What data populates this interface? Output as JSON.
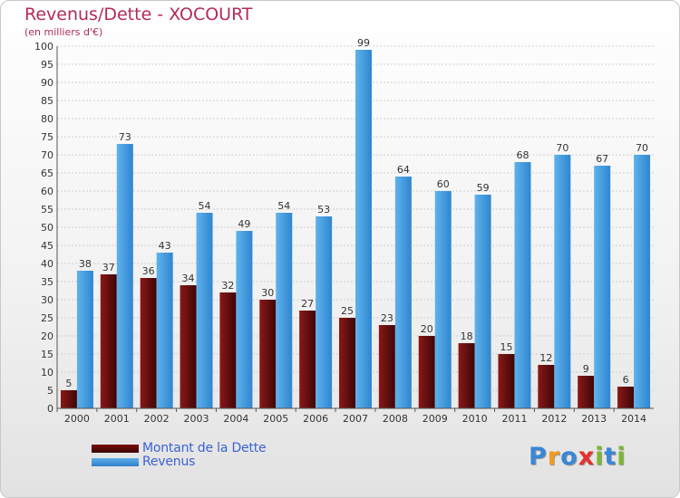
{
  "chart_data": {
    "type": "bar",
    "title": "Revenus/Dette - XOCOURT",
    "subtitle": "(en milliers d'€)",
    "categories": [
      "2000",
      "2001",
      "2002",
      "2003",
      "2004",
      "2005",
      "2006",
      "2007",
      "2008",
      "2009",
      "2010",
      "2011",
      "2012",
      "2013",
      "2014"
    ],
    "series": [
      {
        "name": "Montant de la Dette",
        "color": "#7a0f0f",
        "values": [
          5,
          37,
          36,
          34,
          32,
          30,
          27,
          25,
          23,
          20,
          18,
          15,
          12,
          9,
          6
        ]
      },
      {
        "name": "Revenus",
        "color": "#4aa3e6",
        "values": [
          38,
          73,
          43,
          54,
          49,
          54,
          53,
          99,
          64,
          60,
          59,
          68,
          70,
          67,
          70
        ]
      }
    ],
    "ylim": [
      0,
      100
    ],
    "ytick_step": 5,
    "grid": true,
    "legend": "bottom-left"
  },
  "logo": {
    "text": "Proxiti",
    "letter_colors": [
      "#3a87d6",
      "#f29b1e",
      "#3a87d6",
      "#e2322d",
      "#7cb82f",
      "#3a87d6",
      "#7cb82f"
    ]
  }
}
